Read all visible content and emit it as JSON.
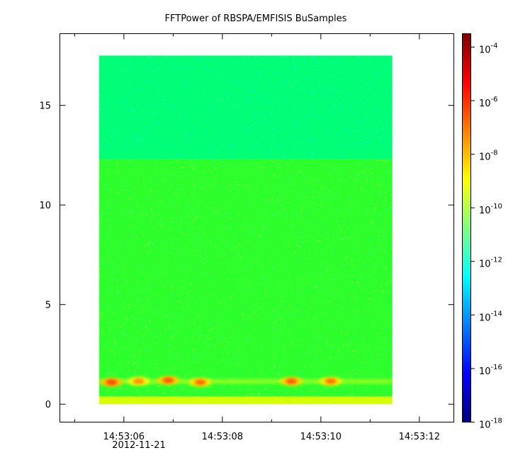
{
  "chart_data": {
    "type": "heatmap",
    "title": "FFTPower of RBSPA/EMFISIS  BuSamples",
    "xlabel": "",
    "ylabel": "",
    "date_label": "2012-11-21",
    "x_axis": {
      "unit": "time",
      "range": [
        "14:53:04.7",
        "14:53:12.7"
      ],
      "major_ticks": [
        {
          "value": "14:53:06",
          "label": "14:53:06"
        },
        {
          "value": "14:53:08",
          "label": "14:53:08"
        },
        {
          "value": "14:53:10",
          "label": "14:53:10"
        },
        {
          "value": "14:53:12",
          "label": "14:53:12"
        }
      ],
      "minor_ticks": [
        "14:53:05",
        "14:53:07",
        "14:53:09",
        "14:53:11"
      ]
    },
    "y_axis": {
      "range": [
        -0.9,
        18.6
      ],
      "ticks": [
        {
          "value": 0,
          "label": "0"
        },
        {
          "value": 5,
          "label": "5"
        },
        {
          "value": 10,
          "label": "10"
        },
        {
          "value": 15,
          "label": "15"
        }
      ]
    },
    "data_extent": {
      "x": [
        "14:53:05.5",
        "14:53:11.45"
      ],
      "y": [
        0.0,
        17.5
      ]
    },
    "colorbar": {
      "scale": "log",
      "range_exponent": [
        -18,
        -3.5
      ],
      "tick_base": "10",
      "tick_exponents": [
        "-4",
        "-6",
        "-8",
        "-10",
        "-12",
        "-14",
        "-16",
        "-18"
      ],
      "colormap": [
        "#00007f",
        "#0000ff",
        "#007fff",
        "#00ffff",
        "#7fff7f",
        "#ffff00",
        "#ff7f00",
        "#ff0000",
        "#7f0000"
      ]
    },
    "regions": [
      {
        "y": [
          12.3,
          17.5
        ],
        "level_exponent": -12.3,
        "color": "#00ff77"
      },
      {
        "y": [
          0.4,
          12.3
        ],
        "level_exponent": -10.7,
        "color": "#2dff2d"
      },
      {
        "y": [
          0.0,
          0.4
        ],
        "level_exponent": -8.8,
        "color": "#d6ff00"
      }
    ],
    "bursts": [
      {
        "t": "14:53:05.75",
        "f": 1.1,
        "level_exponent": -6.3
      },
      {
        "t": "14:53:06.3",
        "f": 1.15,
        "level_exponent": -7.3
      },
      {
        "t": "14:53:06.9",
        "f": 1.2,
        "level_exponent": -6.5
      },
      {
        "t": "14:53:07.55",
        "f": 1.1,
        "level_exponent": -6.8
      },
      {
        "t": "14:53:09.4",
        "f": 1.15,
        "level_exponent": -6.6
      },
      {
        "t": "14:53:10.2",
        "f": 1.15,
        "level_exponent": -6.9
      }
    ]
  }
}
